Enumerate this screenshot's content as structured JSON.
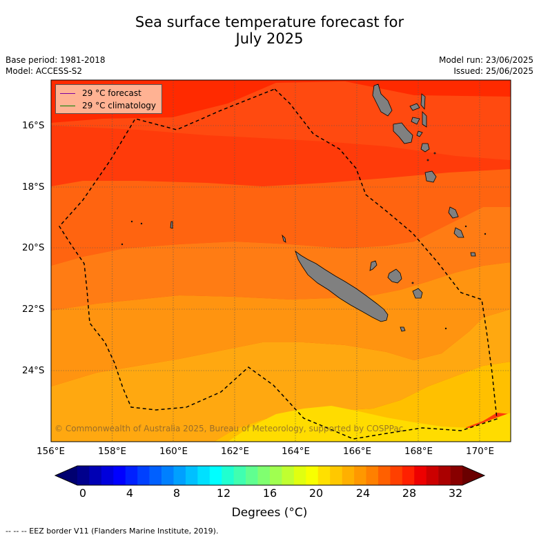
{
  "title_line1": "Sea surface temperature forecast for",
  "title_line2": "July 2025",
  "base_period": "Base period: 1981-2018",
  "model": "Model: ACCESS-S2",
  "model_run": "Model run: 23/06/2025",
  "issued": "Issued: 25/06/2025",
  "legend": {
    "forecast_label": "29 °C  forecast",
    "forecast_color": "#7b00a0",
    "climatology_label": "29 °C  climatology",
    "climatology_color": "#008000"
  },
  "lat_ticks": [
    "16°S",
    "18°S",
    "20°S",
    "22°S",
    "24°S"
  ],
  "lon_ticks": [
    "156°E",
    "158°E",
    "160°E",
    "162°E",
    "164°E",
    "166°E",
    "168°E",
    "170°E"
  ],
  "copyright": "© Commonwealth of Australia 2025, Bureau of Meteorology, supported by COSPPac",
  "colorbar": {
    "ticks": [
      "0",
      "4",
      "8",
      "12",
      "16",
      "20",
      "24",
      "28",
      "32"
    ],
    "label": "Degrees (°C)",
    "min": 0,
    "max": 32,
    "step": 1,
    "colors": [
      "#00008c",
      "#0000b4",
      "#0000dc",
      "#0000ff",
      "#0020ff",
      "#0040ff",
      "#0060ff",
      "#0080ff",
      "#00a0ff",
      "#00c0ff",
      "#00e0ff",
      "#00ffff",
      "#20ffd0",
      "#40ffb0",
      "#60ff90",
      "#80ff70",
      "#a0ff50",
      "#c0ff30",
      "#e0ff10",
      "#f8ff00",
      "#ffe000",
      "#ffc800",
      "#ffb000",
      "#ff9800",
      "#ff8000",
      "#ff6000",
      "#ff4000",
      "#ff2000",
      "#ee0000",
      "#cc0000",
      "#aa0000",
      "#880000"
    ],
    "under_color": "#000070",
    "over_color": "#6a0000"
  },
  "footnote": "--  --  -- EEZ border V11 (Flanders Marine Institute, 2019)."
}
